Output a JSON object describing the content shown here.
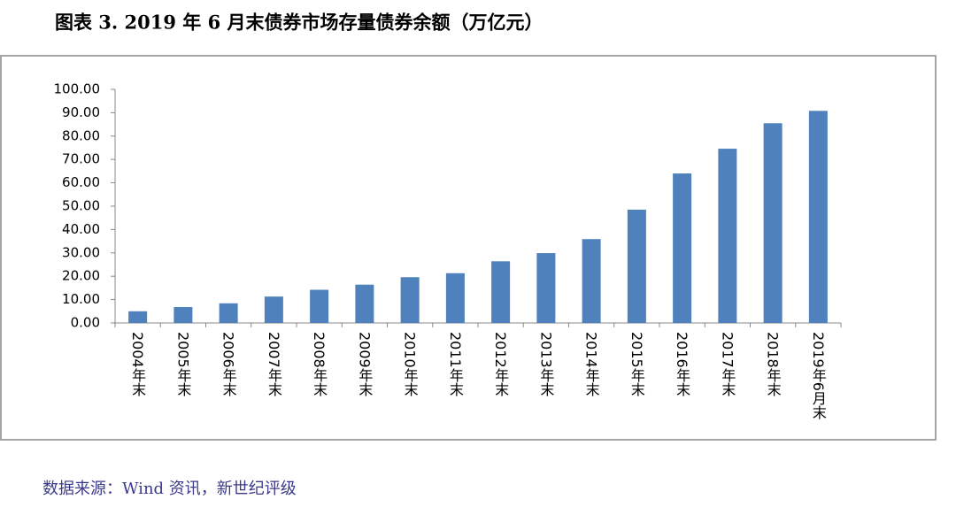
{
  "chart_data": {
    "type": "bar",
    "title": "图表 3.  2019 年 6 月末债券市场存量债券余额（万亿元）",
    "source": "数据来源：Wind 资讯，新世纪评级",
    "categories": [
      "2004年末",
      "2005年末",
      "2006年末",
      "2007年末",
      "2008年末",
      "2009年末",
      "2010年末",
      "2011年末",
      "2012年末",
      "2013年末",
      "2014年末",
      "2015年末",
      "2016年末",
      "2017年末",
      "2018年末",
      "2019年6月末"
    ],
    "values": [
      5.0,
      6.8,
      8.4,
      11.3,
      14.2,
      16.4,
      19.6,
      21.3,
      26.4,
      29.9,
      35.9,
      48.5,
      64.0,
      74.6,
      85.5,
      90.8
    ],
    "color": "#4f81bd",
    "ylim": [
      0,
      100
    ],
    "yticks": [
      {
        "value": 0,
        "label": "0.00"
      },
      {
        "value": 10,
        "label": "10.00"
      },
      {
        "value": 20,
        "label": "20.00"
      },
      {
        "value": 30,
        "label": "30.00"
      },
      {
        "value": 40,
        "label": "40.00"
      },
      {
        "value": 50,
        "label": "50.00"
      },
      {
        "value": 60,
        "label": "60.00"
      },
      {
        "value": 70,
        "label": "70.00"
      },
      {
        "value": 80,
        "label": "80.00"
      },
      {
        "value": 90,
        "label": "90.00"
      },
      {
        "value": 100,
        "label": "100.00"
      }
    ],
    "grid": false
  }
}
